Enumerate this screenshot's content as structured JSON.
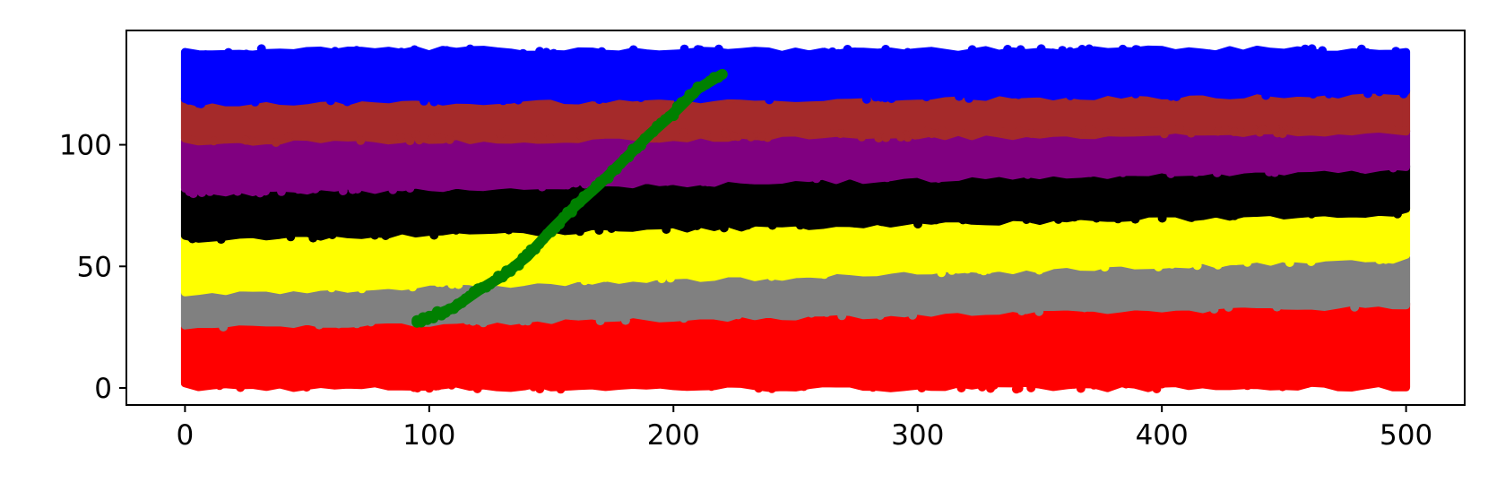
{
  "chart_data": {
    "type": "scatter",
    "title": "",
    "xlabel": "",
    "ylabel": "",
    "xlim": [
      -24,
      524
    ],
    "ylim": [
      -7,
      147
    ],
    "xticks": [
      0,
      100,
      200,
      300,
      400,
      500
    ],
    "yticks": [
      0,
      50,
      100
    ],
    "xtick_labels": [
      "0",
      "100",
      "200",
      "300",
      "400",
      "500"
    ],
    "ytick_labels": [
      "0",
      "50",
      "100"
    ],
    "grid": false,
    "legend": null,
    "series": [
      {
        "name": "red band",
        "color": "#ff0000",
        "x_range": [
          0,
          500
        ],
        "y_bottom_start": 1,
        "y_bottom_end": 1,
        "y_top_start": 26,
        "y_top_end": 35
      },
      {
        "name": "gray band",
        "color": "#808080",
        "x_range": [
          0,
          500
        ],
        "y_bottom_start": 26,
        "y_bottom_end": 35,
        "y_top_start": 40,
        "y_top_end": 54
      },
      {
        "name": "yellow band",
        "color": "#ffff00",
        "x_range": [
          0,
          500
        ],
        "y_bottom_start": 40,
        "y_bottom_end": 54,
        "y_top_start": 62,
        "y_top_end": 73
      },
      {
        "name": "black band",
        "color": "#000000",
        "x_range": [
          0,
          500
        ],
        "y_bottom_start": 62,
        "y_bottom_end": 73,
        "y_top_start": 81,
        "y_top_end": 91
      },
      {
        "name": "purple band",
        "color": "#800080",
        "x_range": [
          0,
          500
        ],
        "y_bottom_start": 81,
        "y_bottom_end": 91,
        "y_top_start": 102,
        "y_top_end": 106
      },
      {
        "name": "brown band",
        "color": "#a52a2a",
        "x_range": [
          0,
          500
        ],
        "y_bottom_start": 102,
        "y_bottom_end": 106,
        "y_top_start": 118,
        "y_top_end": 122
      },
      {
        "name": "blue band",
        "color": "#0000ff",
        "x_range": [
          0,
          500
        ],
        "y_bottom_start": 118,
        "y_bottom_end": 122,
        "y_top_start": 138,
        "y_top_end": 138
      },
      {
        "name": "green trace",
        "color": "#008000",
        "x": [
          95,
          100,
          110,
          120,
          130,
          140,
          150,
          160,
          170,
          180,
          190,
          200,
          210,
          220
        ],
        "y": [
          27,
          29,
          33,
          40,
          46,
          54,
          65,
          75,
          84,
          94,
          104,
          113,
          123,
          129
        ]
      }
    ]
  }
}
